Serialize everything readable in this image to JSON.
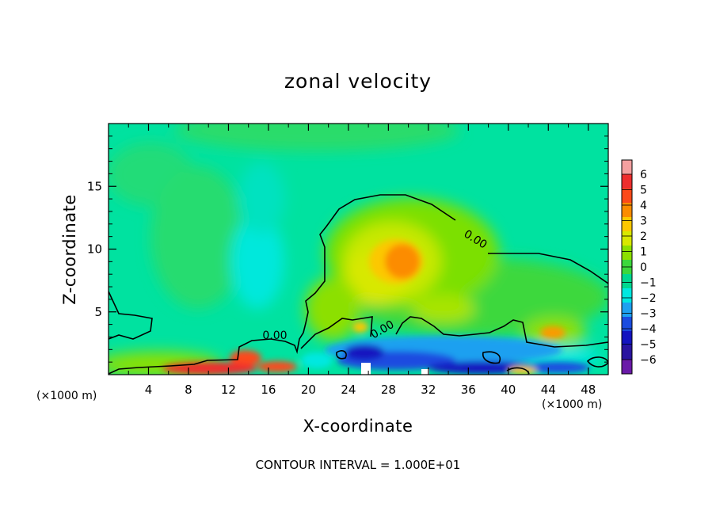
{
  "chart_data": {
    "type": "heatmap",
    "title": "zonal velocity",
    "xlabel": "X-coordinate",
    "ylabel": "Z-coordinate",
    "x_units": "(×1000 m)",
    "y_units": "(×1000 m)",
    "xlim": [
      0,
      50
    ],
    "ylim": [
      0,
      20
    ],
    "x_ticks": [
      4,
      8,
      12,
      16,
      20,
      24,
      28,
      32,
      36,
      40,
      44,
      48
    ],
    "y_ticks": [
      5,
      10,
      15
    ],
    "colorbar": {
      "levels": [
        6,
        5,
        4,
        3,
        2,
        1,
        0,
        -1,
        -2,
        -3,
        -4,
        -5,
        -6
      ],
      "colors": [
        "#f4a0a0",
        "#ee2e2e",
        "#fc4a1a",
        "#fc8c00",
        "#fcc800",
        "#d8e800",
        "#8ce000",
        "#3cd83c",
        "#00d890",
        "#00e8e0",
        "#1ea0f0",
        "#1a4ce0",
        "#1414c0",
        "#2a14a0",
        "#6a1aa8"
      ]
    },
    "contour_label": "0.00",
    "contour_interval_text": "CONTOUR INTERVAL = 1.000E+01",
    "features": [
      {
        "x": 29.5,
        "z": 9.0,
        "value": 3.0
      },
      {
        "x": 45.0,
        "z": 3.2,
        "value": 2.5
      },
      {
        "x": 14.0,
        "z": 1.2,
        "value": 4.0
      },
      {
        "x": 10.0,
        "z": 0.4,
        "value": 3.5
      },
      {
        "x": 27.0,
        "z": 1.5,
        "value": -4.0
      },
      {
        "x": 36.0,
        "z": 0.6,
        "value": -4.0
      },
      {
        "x": 15.0,
        "z": 9.5,
        "value": -2.0
      }
    ]
  }
}
